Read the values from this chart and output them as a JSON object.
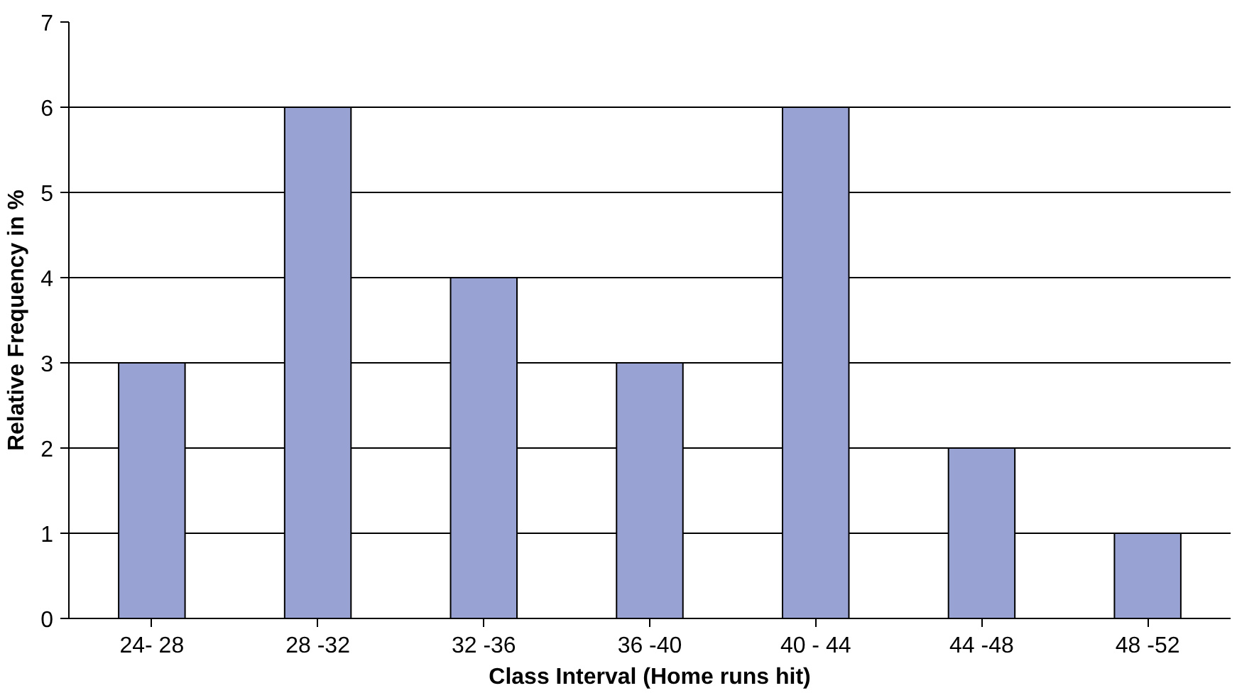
{
  "chart_data": {
    "type": "bar",
    "xlabel": "Class Interval (Home runs hit)",
    "ylabel": "Relative Frequency in %",
    "categories": [
      "24- 28",
      "28 -32",
      "32 -36",
      "36 -40",
      "40 - 44",
      "44 -48",
      "48 -52"
    ],
    "values": [
      3,
      6,
      4,
      3,
      6,
      2,
      1
    ],
    "color": "#99a3d3",
    "ylim": [
      0,
      7
    ],
    "yticks": [
      0,
      1,
      2,
      3,
      4,
      5,
      6,
      7
    ],
    "grid": "y"
  }
}
